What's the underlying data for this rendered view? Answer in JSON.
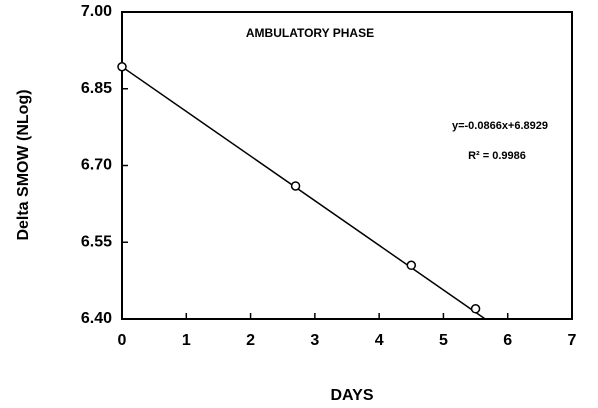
{
  "chart_data": {
    "type": "scatter",
    "annotations": [
      "AMBULATORY PHASE",
      "y=-0.0866x+6.8929",
      "R² = 0.9986"
    ],
    "ylabel": "Delta SMOW (NLog)",
    "xlabel": "DAYS",
    "x": [
      0,
      2.7,
      4.5,
      5.5
    ],
    "values": [
      6.893,
      6.66,
      6.505,
      6.42
    ],
    "fit_line": {
      "x": [
        0,
        5.65
      ],
      "values": [
        6.8929,
        6.4
      ]
    },
    "color": "#000000",
    "xlim": [
      0,
      7
    ],
    "xticks": [
      0,
      1,
      2,
      3,
      4,
      5,
      6,
      7
    ],
    "ylim": [
      6.4,
      7.0
    ],
    "yticks": [
      {
        "value": 6.4,
        "label": "6.40"
      },
      {
        "value": 6.55,
        "label": "6.55"
      },
      {
        "value": 6.7,
        "label": "6.70"
      },
      {
        "value": 6.85,
        "label": "6.85"
      },
      {
        "value": 7.0,
        "label": "7.00"
      }
    ],
    "grid": false
  }
}
